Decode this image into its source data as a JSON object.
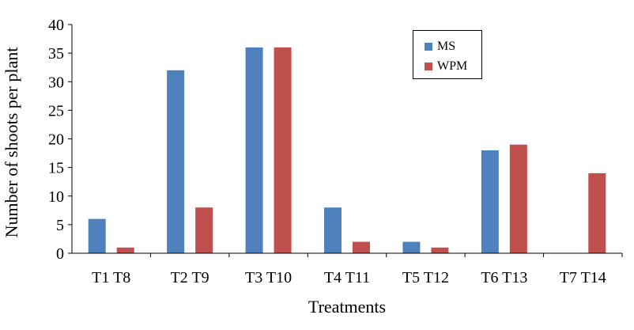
{
  "chart_data": {
    "type": "bar",
    "categories": [
      "T1 T8",
      "T2 T9",
      "T3 T10",
      "T4 T11",
      "T5 T12",
      "T6 T13",
      "T7 T14"
    ],
    "series": [
      {
        "name": "MS",
        "color": "#4f81bd",
        "values": [
          6,
          32,
          36,
          8,
          2,
          18,
          0
        ]
      },
      {
        "name": "WPM",
        "color": "#c0504d",
        "values": [
          1,
          8,
          36,
          2,
          1,
          19,
          14
        ]
      }
    ],
    "xlabel": "Treatments",
    "ylabel": "Number of shoots per plant",
    "ylim": [
      0,
      40
    ],
    "yticks": [
      0,
      5,
      10,
      15,
      20,
      25,
      30,
      35,
      40
    ],
    "grid": false,
    "legend_position": "top-right"
  }
}
